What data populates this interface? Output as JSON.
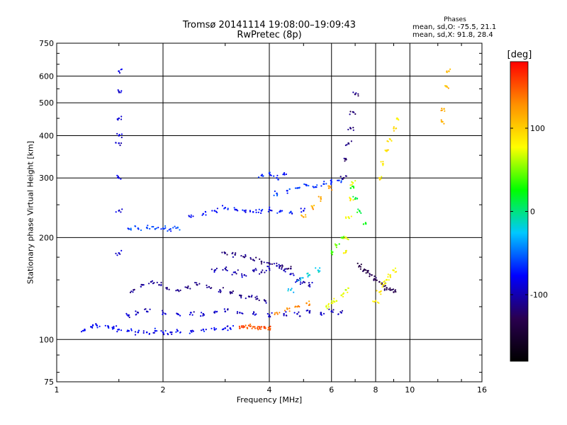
{
  "chart_data": {
    "type": "scatter",
    "title": "Tromsø 20141114 19:08:00–19:09:43",
    "subtitle": "RwPretec (8p)",
    "xlabel": "Frequency [MHz]",
    "ylabel": "Stationary phase Virtual Height [km]",
    "x_scale": "log2",
    "y_scale": "log",
    "xlim": [
      1,
      16
    ],
    "ylim": [
      75,
      750
    ],
    "x_ticks": [
      1,
      2,
      4,
      6,
      8,
      10,
      16
    ],
    "y_ticks": [
      75,
      100,
      200,
      300,
      400,
      500,
      600,
      750
    ],
    "grid": true,
    "stats": {
      "heading": "Phases",
      "o_line": "mean, sd,O: -75.5, 21.1",
      "x_line": "mean, sd,X:  91.8, 28.4"
    },
    "colorbar": {
      "label": "[deg]",
      "ticks": [
        100,
        0,
        -100
      ],
      "range": [
        -180,
        180
      ],
      "colormap": "rainbow",
      "colors": [
        "#000000",
        "#2a0050",
        "#0000ff",
        "#00c8ff",
        "#00ff00",
        "#ffff00",
        "#ff9000",
        "#ff0000"
      ]
    },
    "series": [
      {
        "phase": -80,
        "x": [
          1.2,
          1.25,
          1.3,
          1.4,
          1.45,
          1.5,
          1.6,
          1.7,
          1.8,
          1.9,
          2.0,
          2.1,
          2.2,
          2.4,
          2.6,
          2.8,
          3.0,
          3.1
        ],
        "y": [
          107,
          109,
          110,
          109,
          108,
          107,
          106,
          105,
          105,
          106,
          105,
          105,
          106,
          106,
          107,
          107,
          108,
          108
        ]
      },
      {
        "phase": -95,
        "x": [
          1.6,
          1.7,
          1.8,
          2.0,
          2.2,
          2.4,
          2.6,
          2.8,
          3.0,
          3.3,
          3.6,
          4.0,
          4.4,
          4.8,
          5.2,
          5.6,
          6.0,
          6.4
        ],
        "y": [
          118,
          120,
          121,
          120,
          119,
          120,
          119,
          120,
          121,
          120,
          119,
          118,
          119,
          119,
          120,
          120,
          121,
          120
        ]
      },
      {
        "phase": -110,
        "x": [
          1.65,
          1.75,
          1.85,
          1.95,
          2.05,
          2.2,
          2.35,
          2.5,
          2.7,
          2.9,
          3.1,
          3.3,
          3.5,
          3.7,
          3.9
        ],
        "y": [
          140,
          145,
          148,
          145,
          142,
          140,
          142,
          145,
          143,
          140,
          138,
          135,
          134,
          132,
          130
        ]
      },
      {
        "phase": -100,
        "x": [
          2.8,
          3.0,
          3.2,
          3.4,
          3.6,
          3.8,
          4.0,
          4.2,
          4.4,
          4.6,
          4.8,
          5.0,
          5.2
        ],
        "y": [
          160,
          162,
          158,
          155,
          160,
          158,
          162,
          165,
          160,
          156,
          150,
          148,
          145
        ]
      },
      {
        "phase": -115,
        "x": [
          3.0,
          3.2,
          3.4,
          3.6,
          3.8,
          4.0,
          4.3,
          4.6
        ],
        "y": [
          180,
          178,
          175,
          172,
          170,
          168,
          165,
          162
        ]
      },
      {
        "phase": -60,
        "x": [
          1.6,
          1.7,
          1.8,
          1.9,
          2.0,
          2.1,
          2.2
        ],
        "y": [
          212,
          213,
          214,
          212,
          213,
          212,
          214
        ]
      },
      {
        "phase": -75,
        "x": [
          2.4,
          2.6,
          2.8,
          3.0,
          3.2,
          3.4,
          3.6,
          3.8,
          4.0,
          4.3,
          4.6,
          5.0
        ],
        "y": [
          230,
          235,
          240,
          245,
          242,
          240,
          238,
          240,
          242,
          240,
          238,
          240
        ]
      },
      {
        "phase": -65,
        "x": [
          4.2,
          4.5,
          4.8,
          5.1,
          5.4,
          5.7,
          6.0,
          6.3
        ],
        "y": [
          270,
          275,
          280,
          285,
          282,
          288,
          292,
          295
        ]
      },
      {
        "phase": -70,
        "x": [
          3.8,
          4.0,
          4.2,
          4.4
        ],
        "y": [
          305,
          310,
          300,
          308
        ]
      },
      {
        "phase": -90,
        "x": [
          1.5,
          1.5,
          1.5,
          1.5,
          1.5,
          1.5,
          1.5,
          1.5
        ],
        "y": [
          620,
          540,
          450,
          400,
          380,
          300,
          240,
          180
        ]
      },
      {
        "phase": -120,
        "x": [
          6.5,
          6.6,
          6.7,
          6.8,
          6.9,
          7.0
        ],
        "y": [
          300,
          340,
          380,
          420,
          470,
          530
        ]
      },
      {
        "phase": -130,
        "x": [
          7.2,
          7.4,
          7.6,
          7.8,
          8.0,
          8.2,
          8.4,
          8.6,
          8.8,
          9.0
        ],
        "y": [
          165,
          160,
          158,
          155,
          150,
          148,
          145,
          142,
          140,
          138
        ]
      },
      {
        "phase": 150,
        "x": [
          3.3,
          3.4,
          3.5,
          3.6,
          3.7,
          3.8,
          3.9,
          4.0
        ],
        "y": [
          108,
          109,
          110,
          109,
          108,
          109,
          108,
          108
        ]
      },
      {
        "phase": 130,
        "x": [
          4.2,
          4.5,
          4.8,
          5.1
        ],
        "y": [
          120,
          123,
          125,
          128
        ]
      },
      {
        "phase": 70,
        "x": [
          5.8,
          6.0,
          6.2,
          6.4,
          6.6
        ],
        "y": [
          125,
          128,
          130,
          135,
          140
        ]
      },
      {
        "phase": 80,
        "x": [
          6.5,
          6.6,
          6.7,
          6.8,
          6.9
        ],
        "y": [
          180,
          200,
          230,
          260,
          290
        ]
      },
      {
        "phase": 90,
        "x": [
          8.2,
          8.4,
          8.6,
          8.8,
          9.0,
          9.2
        ],
        "y": [
          300,
          330,
          360,
          390,
          420,
          450
        ]
      },
      {
        "phase": 85,
        "x": [
          8.0,
          8.2,
          8.4,
          8.6,
          8.8,
          9.0
        ],
        "y": [
          130,
          138,
          145,
          150,
          155,
          160
        ]
      },
      {
        "phase": 40,
        "x": [
          6.0,
          6.2,
          6.4
        ],
        "y": [
          180,
          190,
          200
        ]
      },
      {
        "phase": 120,
        "x": [
          5.0,
          5.3,
          5.6,
          5.9
        ],
        "y": [
          230,
          245,
          260,
          280
        ]
      },
      {
        "phase": -20,
        "x": [
          4.6,
          4.9,
          5.2,
          5.5
        ],
        "y": [
          140,
          150,
          155,
          160
        ]
      },
      {
        "phase": 110,
        "x": [
          12.3,
          12.5,
          12.7,
          12.9
        ],
        "y": [
          440,
          480,
          560,
          620
        ]
      },
      {
        "phase": 20,
        "x": [
          6.8,
          7.0,
          7.2,
          7.5
        ],
        "y": [
          280,
          260,
          240,
          220
        ]
      }
    ]
  }
}
